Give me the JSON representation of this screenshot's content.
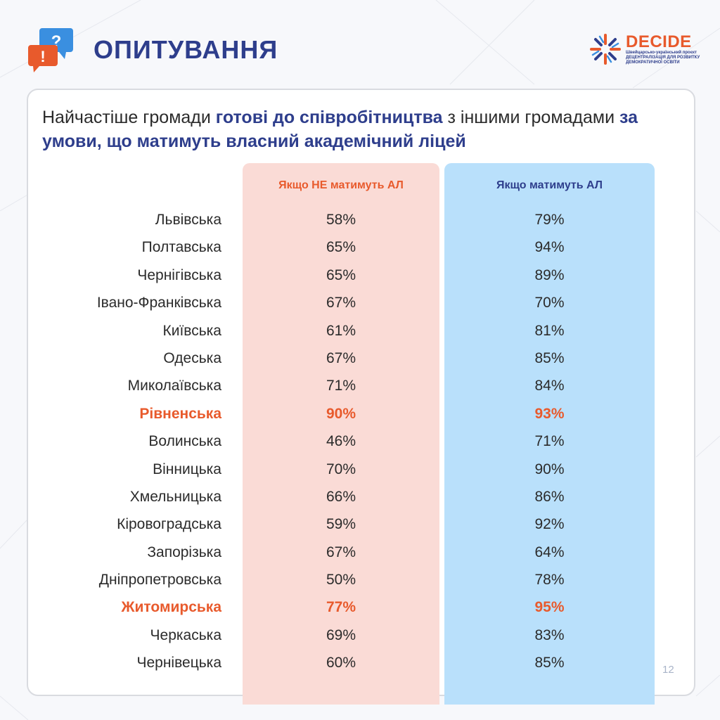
{
  "header": {
    "title": "ОПИТУВАННЯ",
    "icon": "speech-bubbles-question-exclamation-icon"
  },
  "logo": {
    "name": "DECIDE",
    "lines": [
      "Швейцарсько-український проєкт",
      "ДЕЦЕНТРАЛІЗАЦІЯ ДЛЯ РОЗВИТКУ",
      "ДЕМОКРАТИЧНОЇ ОСВІТИ"
    ],
    "icon": "decide-snowflake-logo-icon"
  },
  "heading": {
    "part1": "Найчастіше громади ",
    "part2": "готові до співробітництва",
    "part3": " з іншими громадами ",
    "part4": "за умови, що матимуть власний академічний ліцей"
  },
  "columns": {
    "left": "Якщо НЕ матимуть АЛ",
    "right": "Якщо матимуть АЛ"
  },
  "colors": {
    "accent_orange": "#e85a2c",
    "accent_blue": "#2e3e8c",
    "left_col_bg": "#fadbd6",
    "right_col_bg": "#b9e0fb"
  },
  "rows": [
    {
      "region": "Львівська",
      "without": "58%",
      "with": "79%",
      "highlight": false
    },
    {
      "region": "Полтавська",
      "without": "65%",
      "with": "94%",
      "highlight": false
    },
    {
      "region": "Чернігівська",
      "without": "65%",
      "with": "89%",
      "highlight": false
    },
    {
      "region": "Івано-Франківська",
      "without": "67%",
      "with": "70%",
      "highlight": false
    },
    {
      "region": "Київська",
      "without": "61%",
      "with": "81%",
      "highlight": false
    },
    {
      "region": "Одеська",
      "without": "67%",
      "with": "85%",
      "highlight": false
    },
    {
      "region": "Миколаївська",
      "without": "71%",
      "with": "84%",
      "highlight": false
    },
    {
      "region": "Рівненська",
      "without": "90%",
      "with": "93%",
      "highlight": true
    },
    {
      "region": "Волинська",
      "without": "46%",
      "with": "71%",
      "highlight": false
    },
    {
      "region": "Вінницька",
      "without": "70%",
      "with": "90%",
      "highlight": false
    },
    {
      "region": "Хмельницька",
      "without": "66%",
      "with": "86%",
      "highlight": false
    },
    {
      "region": "Кіровоградська",
      "without": "59%",
      "with": "92%",
      "highlight": false
    },
    {
      "region": "Запорізька",
      "without": "67%",
      "with": "64%",
      "highlight": false
    },
    {
      "region": "Дніпропетровська",
      "without": "50%",
      "with": "78%",
      "highlight": false
    },
    {
      "region": "Житомирська",
      "without": "77%",
      "with": "95%",
      "highlight": true
    },
    {
      "region": "Черкаська",
      "without": "69%",
      "with": "83%",
      "highlight": false
    },
    {
      "region": "Чернівецька",
      "without": "60%",
      "with": "85%",
      "highlight": false
    }
  ],
  "page_number": "12"
}
